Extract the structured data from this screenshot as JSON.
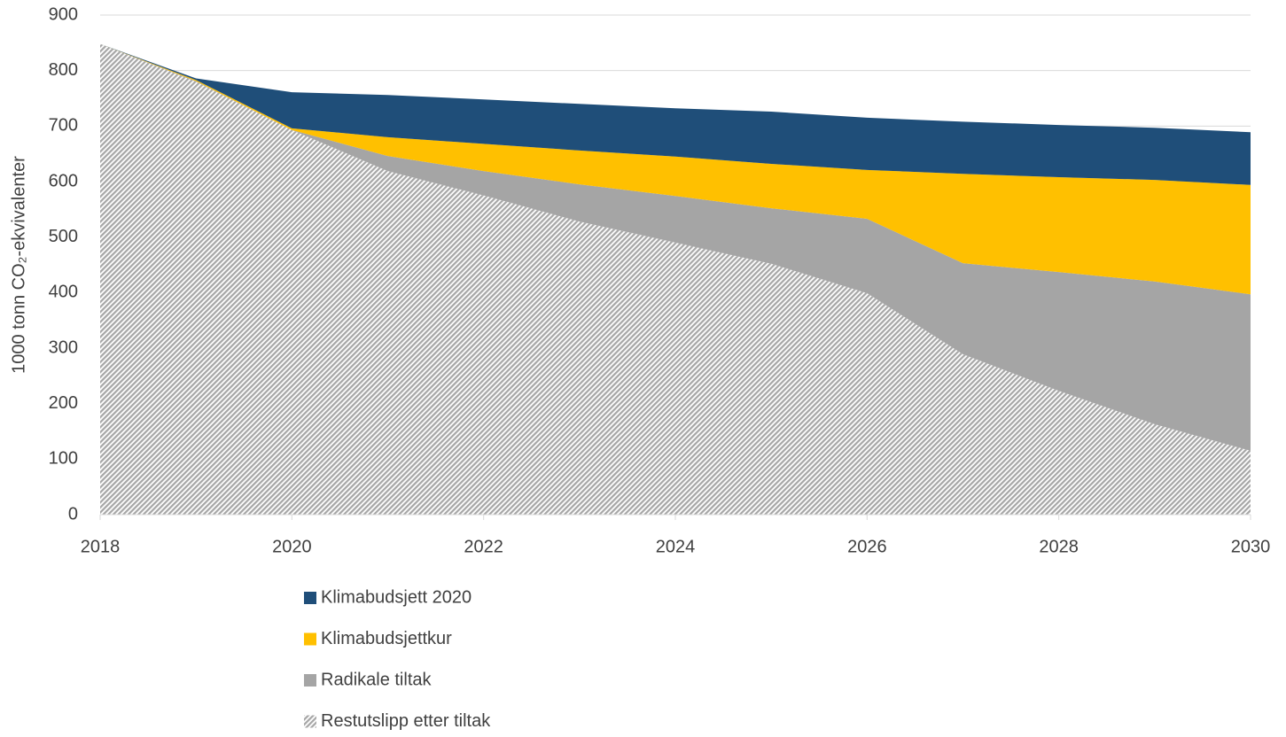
{
  "chart_data": {
    "type": "stacked_area",
    "y_label": "1000 tonn CO₂-ekvivalenter",
    "x": [
      2018,
      2019,
      2020,
      2021,
      2022,
      2023,
      2024,
      2025,
      2026,
      2027,
      2028,
      2029,
      2030
    ],
    "series": [
      {
        "name": "Restutslipp etter tiltak",
        "color": "#a6a6a6",
        "pattern": "hatch",
        "values": [
          848,
          780,
          693,
          619,
          575,
          528,
          490,
          452,
          399,
          289,
          223,
          163,
          115
        ]
      },
      {
        "name": "Radikale tiltak",
        "color": "#a5a5a5",
        "values": [
          0,
          1,
          0,
          27,
          44,
          67,
          84,
          100,
          134,
          164,
          214,
          257,
          282
        ]
      },
      {
        "name": "Klimabudsjettkur",
        "color": "#ffc000",
        "values": [
          0,
          2,
          3,
          34,
          49,
          61,
          71,
          80,
          88,
          161,
          171,
          183,
          197
        ]
      },
      {
        "name": "Klimabudsjett 2020",
        "color": "#1f4e79",
        "values": [
          0,
          3,
          65,
          76,
          80,
          84,
          87,
          94,
          94,
          94,
          94,
          94,
          95
        ]
      }
    ],
    "xlim": [
      2018,
      2030
    ],
    "xticks": [
      2018,
      2020,
      2022,
      2024,
      2026,
      2028,
      2030
    ],
    "ylim": [
      0,
      900
    ],
    "yticks": [
      0,
      100,
      200,
      300,
      400,
      500,
      600,
      700,
      800,
      900
    ],
    "grid": true,
    "legend": "bottom"
  }
}
